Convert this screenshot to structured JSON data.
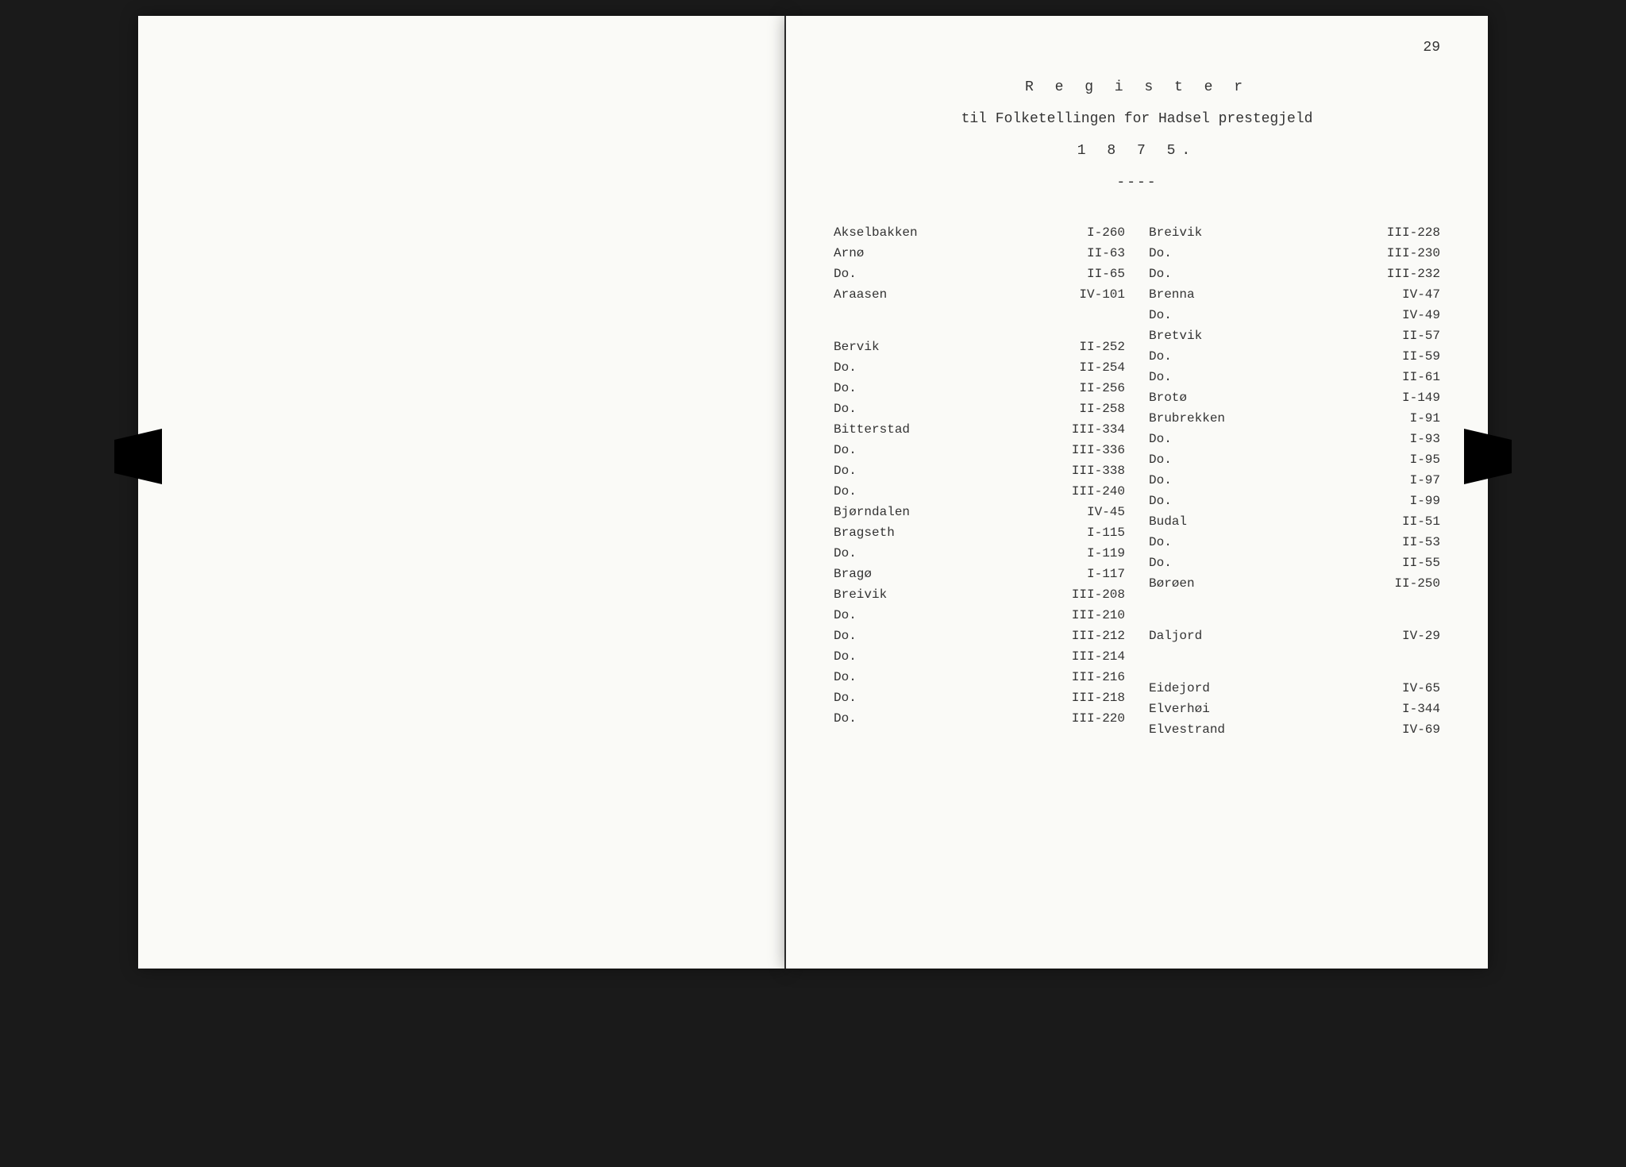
{
  "page_number": "29",
  "header": {
    "title": "R e g i s t e r",
    "subtitle": "til Folketellingen for Hadsel prestegjeld",
    "year": "1 8 7 5.",
    "separator": "----"
  },
  "left_column": [
    {
      "name": "Akselbakken",
      "ref": "I-260"
    },
    {
      "name": "Arnø",
      "ref": "II-63"
    },
    {
      "name": "Do.",
      "ref": "II-65"
    },
    {
      "name": "Araasen",
      "ref": "IV-101"
    },
    {
      "name": "",
      "ref": "",
      "spacer": true
    },
    {
      "name": "",
      "ref": "",
      "spacer": true
    },
    {
      "name": "Bervik",
      "ref": "II-252"
    },
    {
      "name": "Do.",
      "ref": "II-254"
    },
    {
      "name": "Do.",
      "ref": "II-256"
    },
    {
      "name": "Do.",
      "ref": "II-258"
    },
    {
      "name": "Bitterstad",
      "ref": "III-334"
    },
    {
      "name": "Do.",
      "ref": "III-336"
    },
    {
      "name": "Do.",
      "ref": "III-338"
    },
    {
      "name": "Do.",
      "ref": "III-240"
    },
    {
      "name": "Bjørndalen",
      "ref": "IV-45"
    },
    {
      "name": "Bragseth",
      "ref": "I-115"
    },
    {
      "name": "Do.",
      "ref": "I-119"
    },
    {
      "name": "Bragø",
      "ref": "I-117"
    },
    {
      "name": "Breivik",
      "ref": "III-208"
    },
    {
      "name": "Do.",
      "ref": "III-210"
    },
    {
      "name": "Do.",
      "ref": "III-212"
    },
    {
      "name": "Do.",
      "ref": "III-214"
    },
    {
      "name": "Do.",
      "ref": "III-216"
    },
    {
      "name": "Do.",
      "ref": "III-218"
    },
    {
      "name": "Do.",
      "ref": "III-220"
    }
  ],
  "right_column": [
    {
      "name": "Breivik",
      "ref": "III-228"
    },
    {
      "name": "Do.",
      "ref": "III-230"
    },
    {
      "name": "Do.",
      "ref": "III-232"
    },
    {
      "name": "Brenna",
      "ref": "IV-47"
    },
    {
      "name": "Do.",
      "ref": "IV-49"
    },
    {
      "name": "Bretvik",
      "ref": "II-57"
    },
    {
      "name": "Do.",
      "ref": "II-59"
    },
    {
      "name": "Do.",
      "ref": "II-61"
    },
    {
      "name": "Brotø",
      "ref": "I-149"
    },
    {
      "name": "Brubrekken",
      "ref": "I-91"
    },
    {
      "name": "Do.",
      "ref": "I-93"
    },
    {
      "name": "Do.",
      "ref": "I-95"
    },
    {
      "name": "Do.",
      "ref": "I-97"
    },
    {
      "name": "Do.",
      "ref": "I-99"
    },
    {
      "name": "Budal",
      "ref": "II-51"
    },
    {
      "name": "Do.",
      "ref": "II-53"
    },
    {
      "name": "Do.",
      "ref": "II-55"
    },
    {
      "name": "Børøen",
      "ref": "II-250"
    },
    {
      "name": "",
      "ref": "",
      "spacer": true
    },
    {
      "name": "",
      "ref": "",
      "spacer": true
    },
    {
      "name": "Daljord",
      "ref": "IV-29"
    },
    {
      "name": "",
      "ref": "",
      "spacer": true
    },
    {
      "name": "",
      "ref": "",
      "spacer": true
    },
    {
      "name": "Eidejord",
      "ref": "IV-65"
    },
    {
      "name": "Elverhøi",
      "ref": "I-344"
    },
    {
      "name": "Elvestrand",
      "ref": "IV-69"
    }
  ]
}
